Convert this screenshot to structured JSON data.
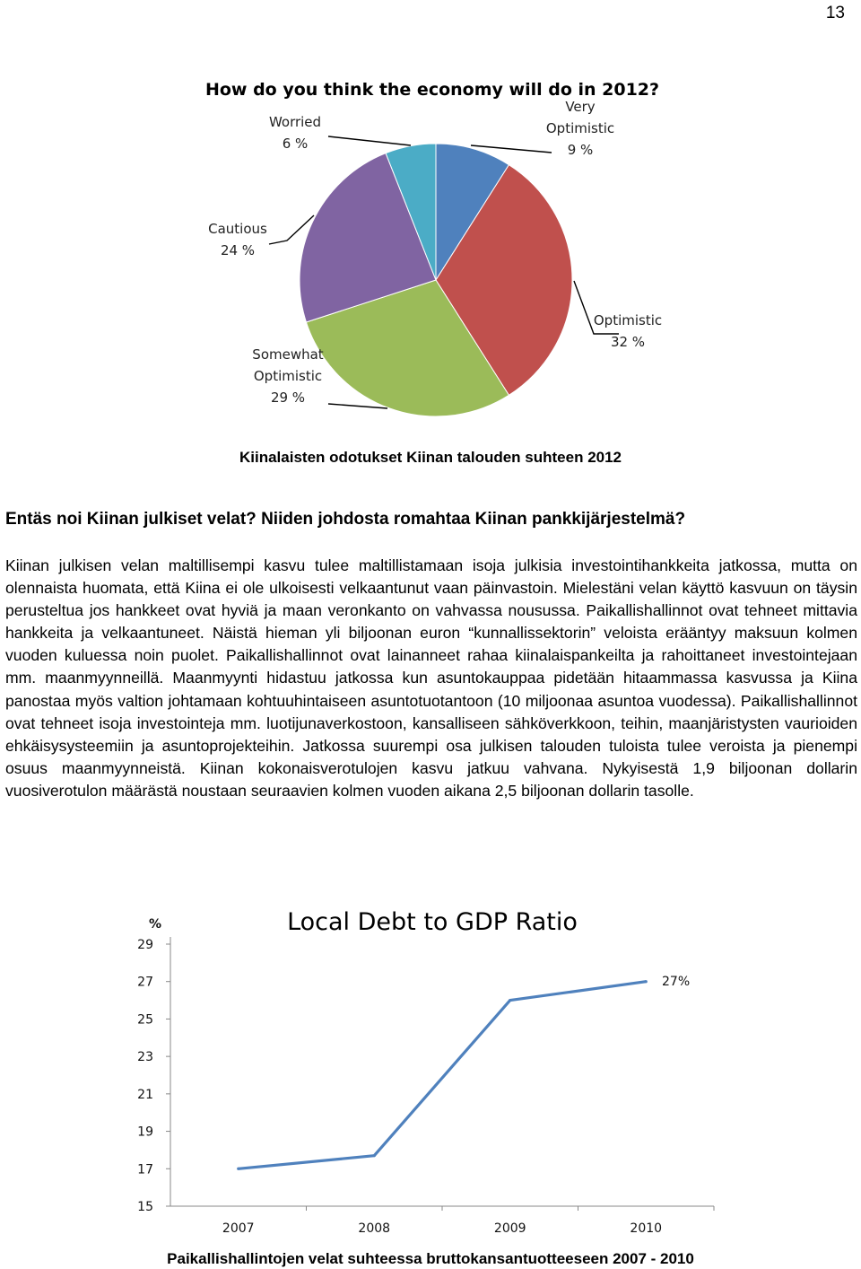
{
  "page": {
    "number": "13"
  },
  "pie_chart": {
    "title": "How do you think the economy will do in 2012?",
    "slices": [
      {
        "label": "Very\nOptimistic\n9 %",
        "name": "Very Optimistic",
        "value": 9,
        "color": "#4f81bd"
      },
      {
        "label": "Optimistic\n32 %",
        "name": "Optimistic",
        "value": 32,
        "color": "#c0504d"
      },
      {
        "label": "Somewhat\nOptimistic\n29 %",
        "name": "Somewhat Optimistic",
        "value": 29,
        "color": "#9bbb59"
      },
      {
        "label": "Cautious\n24 %",
        "name": "Cautious",
        "value": 24,
        "color": "#8064a2"
      },
      {
        "label": "Worried\n6 %",
        "name": "Worried",
        "value": 6,
        "color": "#4bacc6"
      }
    ],
    "caption": "Kiinalaisten odotukset Kiinan talouden suhteen 2012"
  },
  "article": {
    "heading": "Entäs noi Kiinan julkiset velat? Niiden johdosta romahtaa Kiinan pankkijärjestelmä?",
    "body": "Kiinan julkisen velan maltillisempi kasvu tulee maltillistamaan isoja julkisia investointihankkeita jatkossa, mutta on olennaista huomata, että Kiina ei ole ulkoisesti velkaantunut vaan päinvastoin. Mielestäni velan käyttö kasvuun on täysin perusteltua jos hankkeet ovat hyviä ja maan veronkanto on vahvassa nousussa. Paikallishallinnot ovat tehneet mittavia hankkeita ja velkaantuneet. Näistä hieman yli biljoonan euron “kunnallissektorin” veloista erääntyy maksuun kolmen vuoden kuluessa noin puolet. Paikallishallinnot ovat lainanneet rahaa kiinalaispankeilta ja rahoittaneet investointejaan mm. maanmyynneillä. Maanmyynti hidastuu jatkossa kun asuntokauppaa pidetään hitaammassa kasvussa ja Kiina panostaa myös valtion johtamaan kohtuuhintaiseen asuntotuotantoon (10 miljoonaa asuntoa vuodessa). Paikallishallinnot ovat tehneet isoja investointeja mm. luotijunaverkostoon, kansalliseen sähköverkkoon, teihin, maanjäristysten vaurioiden ehkäisysysteemiin ja asuntoprojekteihin. Jatkossa suurempi osa julkisen talouden tuloista tulee veroista ja pienempi osuus maanmyynneistä. Kiinan kokonaisverotulojen kasvu jatkuu vahvana. Nykyisestä 1,9 biljoonan dollarin vuosiverotulon määrästä noustaan seuraavien kolmen vuoden aikana 2,5 biljoonan dollarin tasolle."
  },
  "line_chart": {
    "caption": "Paikallishallintojen velat suhteessa bruttokansantuotteeseen 2007 - 2010"
  },
  "chart_data": [
    {
      "type": "pie",
      "title": "How do you think the economy will do in 2012?",
      "categories": [
        "Very Optimistic",
        "Optimistic",
        "Somewhat Optimistic",
        "Cautious",
        "Worried"
      ],
      "values": [
        9,
        32,
        29,
        24,
        6
      ],
      "unit": "%"
    },
    {
      "type": "line",
      "title": "Local Debt to GDP Ratio",
      "ylabel": "%",
      "xlabel": "",
      "categories": [
        "2007",
        "2008",
        "2009",
        "2010"
      ],
      "series": [
        {
          "values": [
            17,
            17.7,
            26,
            27
          ],
          "color": "#4f81bd"
        }
      ],
      "ylim": [
        15,
        29
      ],
      "yticks": [
        "29",
        "27",
        "25",
        "23",
        "21",
        "19",
        "17",
        "15"
      ],
      "annotations": [
        "27%"
      ],
      "grid": false
    }
  ]
}
